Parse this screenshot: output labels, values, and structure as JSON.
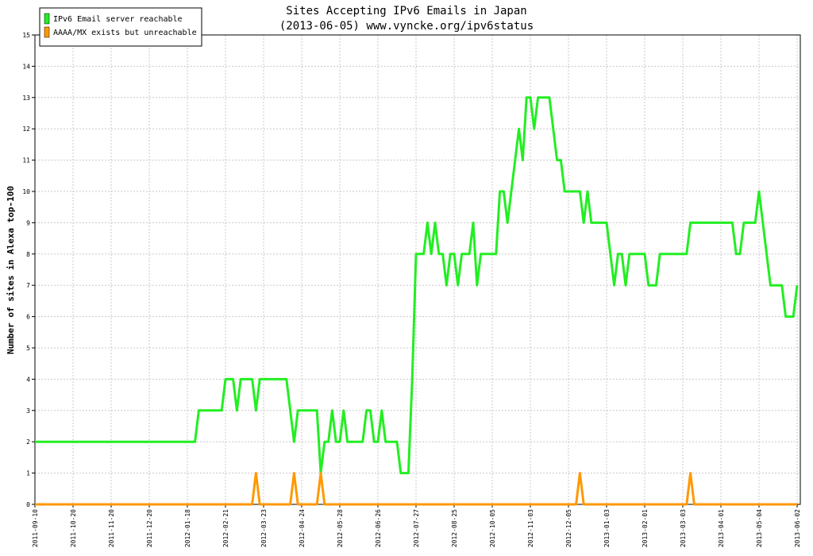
{
  "chart_data": {
    "type": "line",
    "title": "Sites Accepting IPv6 Emails in Japan",
    "subtitle": "(2013-06-05) www.vyncke.org/ipv6status",
    "y_label": "Number of sites in Alexa top-100",
    "categories": [
      "2011-09-10",
      null,
      null,
      null,
      null,
      null,
      null,
      null,
      null,
      null,
      "2011-10-20",
      null,
      null,
      null,
      null,
      null,
      null,
      null,
      null,
      null,
      "2011-11-20",
      null,
      null,
      null,
      null,
      null,
      null,
      null,
      null,
      null,
      "2011-12-20",
      null,
      null,
      null,
      null,
      null,
      null,
      null,
      null,
      null,
      "2012-01-18",
      null,
      null,
      null,
      null,
      null,
      null,
      null,
      null,
      null,
      "2012-02-21",
      null,
      null,
      null,
      null,
      null,
      null,
      null,
      null,
      null,
      "2012-03-23",
      null,
      null,
      null,
      null,
      null,
      null,
      null,
      null,
      null,
      "2012-04-24",
      null,
      null,
      null,
      null,
      null,
      null,
      null,
      null,
      null,
      "2012-05-28",
      null,
      null,
      null,
      null,
      null,
      null,
      null,
      null,
      null,
      "2012-06-26",
      null,
      null,
      null,
      null,
      null,
      null,
      null,
      null,
      null,
      "2012-07-27",
      null,
      null,
      null,
      null,
      null,
      null,
      null,
      null,
      null,
      "2012-08-25",
      null,
      null,
      null,
      null,
      null,
      null,
      null,
      null,
      null,
      "2012-10-05",
      null,
      null,
      null,
      null,
      null,
      null,
      null,
      null,
      null,
      "2012-11-03",
      null,
      null,
      null,
      null,
      null,
      null,
      null,
      null,
      null,
      "2012-12-05",
      null,
      null,
      null,
      null,
      null,
      null,
      null,
      null,
      null,
      "2013-01-03",
      null,
      null,
      null,
      null,
      null,
      null,
      null,
      null,
      null,
      "2013-02-01",
      null,
      null,
      null,
      null,
      null,
      null,
      null,
      null,
      null,
      "2013-03-03",
      null,
      null,
      null,
      null,
      null,
      null,
      null,
      null,
      null,
      "2013-04-01",
      null,
      null,
      null,
      null,
      null,
      null,
      null,
      null,
      null,
      "2013-05-04",
      null,
      null,
      null,
      null,
      null,
      null,
      null,
      null,
      null,
      "2013-06-02"
    ],
    "series": [
      {
        "name": "IPv6 Email server reachable",
        "color": "#22ee22",
        "values": [
          2,
          2,
          2,
          2,
          2,
          2,
          2,
          2,
          2,
          2,
          2,
          2,
          2,
          2,
          2,
          2,
          2,
          2,
          2,
          2,
          2,
          2,
          2,
          2,
          2,
          2,
          2,
          2,
          2,
          2,
          2,
          2,
          2,
          2,
          2,
          2,
          2,
          2,
          2,
          2,
          2,
          2,
          2,
          3,
          3,
          3,
          3,
          3,
          3,
          3,
          4,
          4,
          4,
          3,
          4,
          4,
          4,
          4,
          3,
          4,
          4,
          4,
          4,
          4,
          4,
          4,
          4,
          3,
          2,
          3,
          3,
          3,
          3,
          3,
          3,
          1,
          2,
          2,
          3,
          2,
          2,
          3,
          2,
          2,
          2,
          2,
          2,
          3,
          3,
          2,
          2,
          3,
          2,
          2,
          2,
          2,
          1,
          1,
          1,
          4,
          8,
          8,
          8,
          9,
          8,
          9,
          8,
          8,
          7,
          8,
          8,
          7,
          8,
          8,
          8,
          9,
          7,
          8,
          8,
          8,
          8,
          8,
          10,
          10,
          9,
          10,
          11,
          12,
          11,
          13,
          13,
          12,
          13,
          13,
          13,
          13,
          12,
          11,
          11,
          10,
          10,
          10,
          10,
          10,
          9,
          10,
          9,
          9,
          9,
          9,
          9,
          8,
          7,
          8,
          8,
          7,
          8,
          8,
          8,
          8,
          8,
          7,
          7,
          7,
          8,
          8,
          8,
          8,
          8,
          8,
          8,
          8,
          9,
          9,
          9,
          9,
          9,
          9,
          9,
          9,
          9,
          9,
          9,
          9,
          8,
          8,
          9,
          9,
          9,
          9,
          10,
          9,
          8,
          7,
          7,
          7,
          7,
          6,
          6,
          6,
          7
        ]
      },
      {
        "name": "AAAA/MX exists but unreachable",
        "color": "#ff9900",
        "values": [
          0,
          0,
          0,
          0,
          0,
          0,
          0,
          0,
          0,
          0,
          0,
          0,
          0,
          0,
          0,
          0,
          0,
          0,
          0,
          0,
          0,
          0,
          0,
          0,
          0,
          0,
          0,
          0,
          0,
          0,
          0,
          0,
          0,
          0,
          0,
          0,
          0,
          0,
          0,
          0,
          0,
          0,
          0,
          0,
          0,
          0,
          0,
          0,
          0,
          0,
          0,
          0,
          0,
          0,
          0,
          0,
          0,
          0,
          1,
          0,
          0,
          0,
          0,
          0,
          0,
          0,
          0,
          0,
          1,
          0,
          0,
          0,
          0,
          0,
          0,
          1,
          0,
          0,
          0,
          0,
          0,
          0,
          0,
          0,
          0,
          0,
          0,
          0,
          0,
          0,
          0,
          0,
          0,
          0,
          0,
          0,
          0,
          0,
          0,
          0,
          0,
          0,
          0,
          0,
          0,
          0,
          0,
          0,
          0,
          0,
          0,
          0,
          0,
          0,
          0,
          0,
          0,
          0,
          0,
          0,
          0,
          0,
          0,
          0,
          0,
          0,
          0,
          0,
          0,
          0,
          0,
          0,
          0,
          0,
          0,
          0,
          0,
          0,
          0,
          0,
          0,
          0,
          0,
          1,
          0,
          0,
          0,
          0,
          0,
          0,
          0,
          0,
          0,
          0,
          0,
          0,
          0,
          0,
          0,
          0,
          0,
          0,
          0,
          0,
          0,
          0,
          0,
          0,
          0,
          0,
          0,
          0,
          1,
          0,
          0,
          0,
          0,
          0,
          0,
          0,
          0,
          0,
          0,
          0,
          0,
          0,
          0,
          0,
          0,
          0,
          0,
          0,
          0,
          0,
          0,
          0,
          0,
          0,
          0,
          0,
          0
        ]
      }
    ],
    "ylim": [
      0,
      15
    ],
    "yticks": [
      0,
      1,
      2,
      3,
      4,
      5,
      6,
      7,
      8,
      9,
      10,
      11,
      12,
      13,
      14,
      15
    ],
    "grid": true,
    "legend": "top-left"
  }
}
